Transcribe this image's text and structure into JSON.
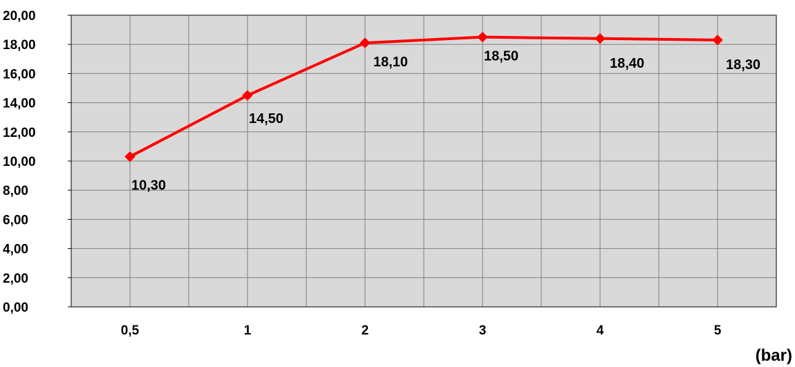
{
  "chart_data": {
    "type": "line",
    "categories": [
      "0,5",
      "1",
      "2",
      "3",
      "4",
      "5"
    ],
    "series": [
      {
        "values": [
          10.3,
          14.5,
          18.1,
          18.5,
          18.4,
          18.3
        ],
        "data_labels": [
          "10,30",
          "14,50",
          "18,10",
          "18,50",
          "18,40",
          "18,30"
        ],
        "color": "#ff0000",
        "marker": "diamond"
      }
    ],
    "y_ticks": [
      "0,00",
      "2,00",
      "4,00",
      "6,00",
      "8,00",
      "10,00",
      "12,00",
      "14,00",
      "16,00",
      "18,00",
      "20,00"
    ],
    "ylim": [
      0,
      20
    ],
    "y_step": 2,
    "x_unit_label": "(bar)",
    "title": "",
    "xlabel": "",
    "ylabel": "",
    "grid": true,
    "legend": "none",
    "plot_background": "#d9d9d9",
    "grid_color": "#808080"
  }
}
